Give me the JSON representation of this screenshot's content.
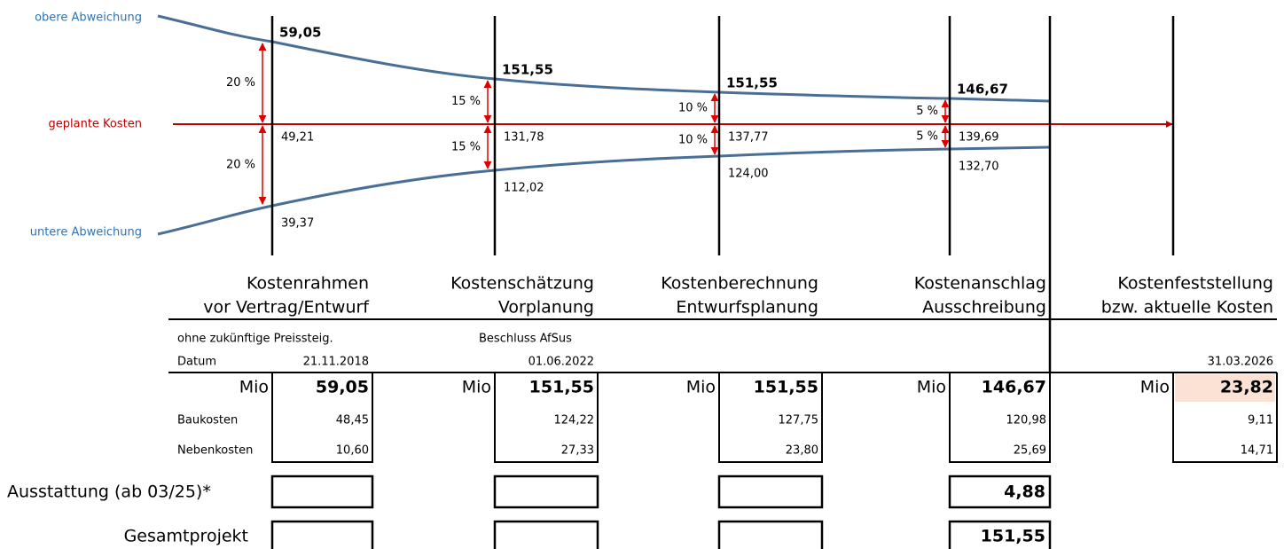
{
  "labels": {
    "upper": "obere Abweichung",
    "planned": "geplante Kosten",
    "lower": "untere Abweichung"
  },
  "row_labels": {
    "baukosten": "Baukosten",
    "nebenkosten": "Nebenkosten",
    "ausstattung": "Ausstattung (ab 03/25)*",
    "gesamt": "Gesamtprojekt",
    "date": "Datum"
  },
  "phases": [
    {
      "title_line1": "Kostenrahmen",
      "title_line2": "vor Vertrag/Entwurf",
      "upper": "59,05",
      "planned": "49,21",
      "lower": "39,37",
      "upper_pct": "20 %",
      "lower_pct": "20 %",
      "note": "ohne zukünftige Preissteig.",
      "date": "21.11.2018",
      "unit": "Mio",
      "total": "59,05",
      "baukosten": "48,45",
      "nebenkosten": "10,60"
    },
    {
      "title_line1": "Kostenschätzung",
      "title_line2": "Vorplanung",
      "upper": "151,55",
      "planned": "131,78",
      "lower": "112,02",
      "upper_pct": "15 %",
      "lower_pct": "15 %",
      "note": "Beschluss AfSus",
      "date": "01.06.2022",
      "unit": "Mio",
      "total": "151,55",
      "baukosten": "124,22",
      "nebenkosten": "27,33"
    },
    {
      "title_line1": "Kostenberechnung",
      "title_line2": "Entwurfsplanung",
      "upper": "151,55",
      "planned": "137,77",
      "lower": "124,00",
      "upper_pct": "10 %",
      "lower_pct": "10 %",
      "unit": "Mio",
      "total": "151,55",
      "baukosten": "127,75",
      "nebenkosten": "23,80"
    },
    {
      "title_line1": "Kostenanschlag",
      "title_line2": "Ausschreibung",
      "upper": "146,67",
      "planned": "139,69",
      "lower": "132,70",
      "upper_pct": "5 %",
      "lower_pct": "5 %",
      "unit": "Mio",
      "total": "146,67",
      "baukosten": "120,98",
      "nebenkosten": "25,69",
      "ausstattung": "4,88",
      "gesamt": "151,55"
    },
    {
      "title_line1": "Kostenfeststellung",
      "title_line2": "bzw. aktuelle Kosten",
      "date": "31.03.2026",
      "unit": "Mio",
      "total": "23,82",
      "baukosten": "9,11",
      "nebenkosten": "14,71"
    }
  ]
}
